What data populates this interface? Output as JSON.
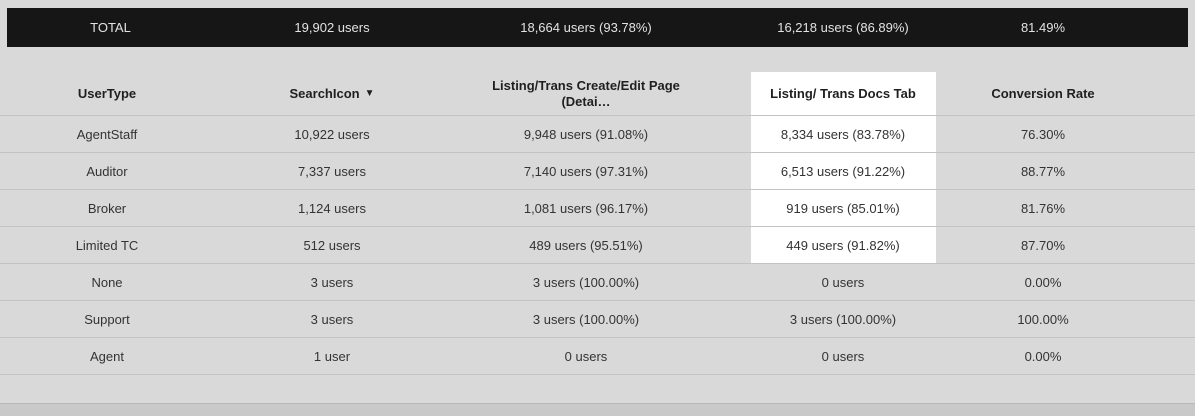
{
  "colors": {
    "page_bg": "#d9d9d9",
    "total_bar_bg": "#161616",
    "total_bar_text": "#e2e2e2",
    "highlight_bg": "#ffffff",
    "body_text": "#333333",
    "header_text": "#1f1f1f",
    "divider": "#c3c3c3",
    "footer_bg": "#c9c9c9"
  },
  "total_bar": {
    "label": "TOTAL",
    "users_total": "19,902 users",
    "step_create_edit": "18,664 users (93.78%)",
    "step_docs_tab": "16,218 users (86.89%)",
    "conversion_rate": "81.49%"
  },
  "header": {
    "col_user_type": "UserType",
    "col_search_icon": "SearchIcon",
    "sort_indicator": "▼",
    "col_create_edit_line1": "Listing/Trans Create/Edit Page",
    "col_create_edit_line2": "(Detai…",
    "col_docs_tab": "Listing/ Trans Docs Tab",
    "col_conversion_rate": "Conversion Rate"
  },
  "rows": [
    {
      "user_type": "AgentStaff",
      "search_icon": "10,922 users",
      "create_edit": "9,948 users (91.08%)",
      "docs_tab": "8,334 users (83.78%)",
      "conversion_rate": "76.30%",
      "docs_tab_highlighted": true
    },
    {
      "user_type": "Auditor",
      "search_icon": "7,337 users",
      "create_edit": "7,140 users (97.31%)",
      "docs_tab": "6,513 users (91.22%)",
      "conversion_rate": "88.77%",
      "docs_tab_highlighted": true
    },
    {
      "user_type": "Broker",
      "search_icon": "1,124 users",
      "create_edit": "1,081 users (96.17%)",
      "docs_tab": "919 users (85.01%)",
      "conversion_rate": "81.76%",
      "docs_tab_highlighted": true
    },
    {
      "user_type": "Limited TC",
      "search_icon": "512 users",
      "create_edit": "489 users (95.51%)",
      "docs_tab": "449 users (91.82%)",
      "conversion_rate": "87.70%",
      "docs_tab_highlighted": true
    },
    {
      "user_type": "None",
      "search_icon": "3 users",
      "create_edit": "3 users (100.00%)",
      "docs_tab": "0 users",
      "conversion_rate": "0.00%",
      "docs_tab_highlighted": false
    },
    {
      "user_type": "Support",
      "search_icon": "3 users",
      "create_edit": "3 users (100.00%)",
      "docs_tab": "3 users (100.00%)",
      "conversion_rate": "100.00%",
      "docs_tab_highlighted": false
    },
    {
      "user_type": "Agent",
      "search_icon": "1 user",
      "create_edit": "0 users",
      "docs_tab": "0 users",
      "conversion_rate": "0.00%",
      "docs_tab_highlighted": false
    }
  ]
}
